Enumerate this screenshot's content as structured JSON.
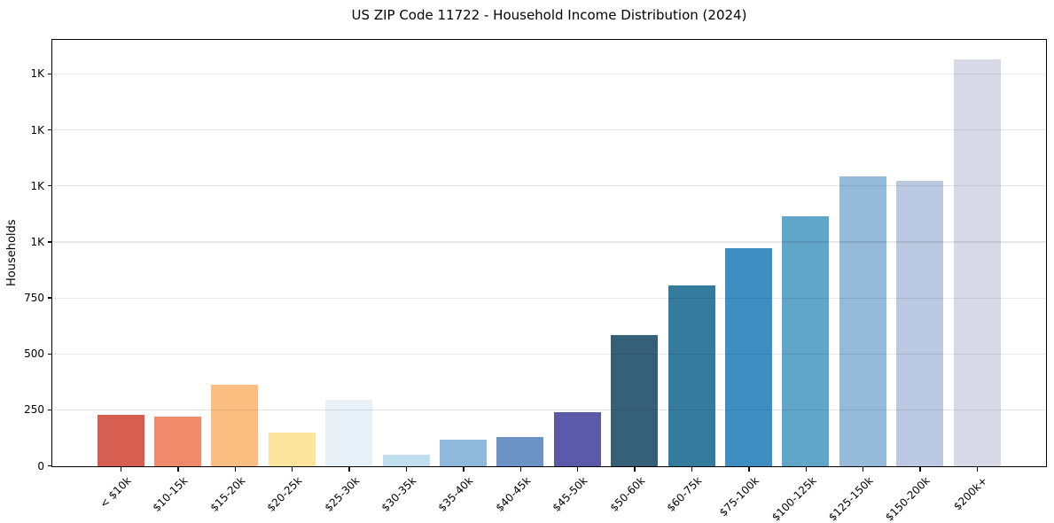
{
  "chart_data": {
    "type": "bar",
    "title": "US ZIP Code 11722 - Household Income Distribution (2024)",
    "xlabel": "",
    "ylabel": "Households",
    "categories": [
      "< $10k",
      "$10-15k",
      "$15-20k",
      "$20-25k",
      "$25-30k",
      "$30-35k",
      "$35-40k",
      "$40-45k",
      "$45-50k",
      "$50-60k",
      "$60-75k",
      "$75-100k",
      "$100-125k",
      "$125-150k",
      "$150-200k",
      "$200k+"
    ],
    "values": [
      230,
      222,
      365,
      152,
      298,
      53,
      118,
      129,
      240,
      585,
      809,
      972,
      1115,
      1296,
      1273,
      1815
    ],
    "bar_colors": [
      "#d65f51",
      "#f18a6a",
      "#fbbd80",
      "#fde49e",
      "#e8f1f7",
      "#c0dfee",
      "#8fb9da",
      "#6b93c6",
      "#5c59a8",
      "#356078",
      "#347b9e",
      "#3e8ec4",
      "#60a6c9",
      "#94b9d9",
      "#bac9e1",
      "#d7dae6"
    ],
    "ylim": [
      0,
      1900
    ],
    "yticks": [
      {
        "value": 0,
        "label": "0"
      },
      {
        "value": 250,
        "label": "250"
      },
      {
        "value": 500,
        "label": "500"
      },
      {
        "value": 750,
        "label": "750"
      },
      {
        "value": 1000,
        "label": "1K"
      },
      {
        "value": 1250,
        "label": "1K"
      },
      {
        "value": 1500,
        "label": "1K"
      },
      {
        "value": 1750,
        "label": "1K"
      }
    ],
    "grid": "horizontal",
    "gridline_color": "#e7e7e7",
    "legend": "none",
    "background": "#ffffff"
  }
}
